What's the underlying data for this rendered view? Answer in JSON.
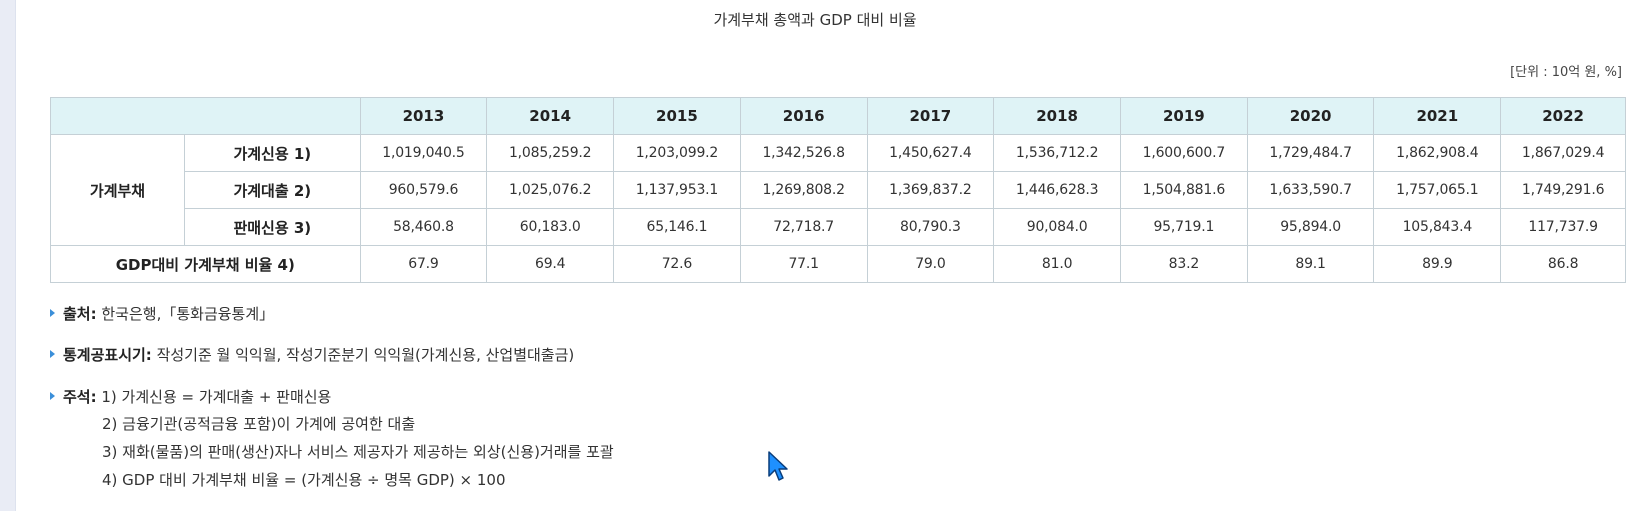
{
  "title": "가계부채 총액과 GDP 대비 비율",
  "unit": "[단위 : 10억 원, %]",
  "table": {
    "years": [
      "2013",
      "2014",
      "2015",
      "2016",
      "2017",
      "2018",
      "2019",
      "2020",
      "2021",
      "2022"
    ],
    "group_label": "가계부채",
    "rows": [
      {
        "label": "가계신용 1)",
        "values": [
          "1,019,040.5",
          "1,085,259.2",
          "1,203,099.2",
          "1,342,526.8",
          "1,450,627.4",
          "1,536,712.2",
          "1,600,600.7",
          "1,729,484.7",
          "1,862,908.4",
          "1,867,029.4"
        ]
      },
      {
        "label": "가계대출 2)",
        "values": [
          "960,579.6",
          "1,025,076.2",
          "1,137,953.1",
          "1,269,808.2",
          "1,369,837.2",
          "1,446,628.3",
          "1,504,881.6",
          "1,633,590.7",
          "1,757,065.1",
          "1,749,291.6"
        ]
      },
      {
        "label": "판매신용 3)",
        "values": [
          "58,460.8",
          "60,183.0",
          "65,146.1",
          "72,718.7",
          "80,790.3",
          "90,084.0",
          "95,719.1",
          "95,894.0",
          "105,843.4",
          "117,737.9"
        ]
      }
    ],
    "ratio_row": {
      "label": "GDP대비 가계부채 비율 4)",
      "values": [
        "67.9",
        "69.4",
        "72.6",
        "77.1",
        "79.0",
        "81.0",
        "83.2",
        "89.1",
        "89.9",
        "86.8"
      ]
    }
  },
  "notes": {
    "source_label": "출처:",
    "source_text": " 한국은행,「통화금융통계」",
    "release_label": "통계공표시기:",
    "release_text": " 작성기준 월 익익월, 작성기준분기 익익월(가계신용, 산업별대출금)",
    "remarks_label": "주석:",
    "remarks": [
      " 1) 가계신용 = 가계대출 + 판매신용",
      "2) 금융기관(공적금융 포함)이 가계에 공여한 대출",
      "3) 재화(물품)의 판매(생산)자나 서비스 제공자가 제공하는 외상(신용)거래를 포괄",
      "4) GDP 대비 가계부채 비율 = (가계신용 ÷ 명목 GDP) × 100"
    ]
  },
  "colors": {
    "header_bg": "#dff3f6",
    "border": "#c5d0d6",
    "bullet": "#3b8fd9",
    "cursor": "#1e90ff"
  }
}
